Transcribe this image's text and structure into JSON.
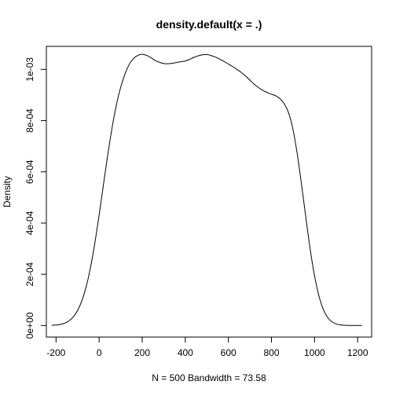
{
  "chart_data": {
    "type": "line",
    "title": "density.default(x = .)",
    "xlabel": "N = 500   Bandwidth = 73.58",
    "ylabel": "Density",
    "xlim": [
      -245,
      1265
    ],
    "ylim": [
      -4.5e-05,
      0.00109
    ],
    "x_ticks": [
      -200,
      0,
      200,
      400,
      600,
      800,
      1000,
      1200
    ],
    "x_tick_labels": [
      "-200",
      "0",
      "200",
      "400",
      "600",
      "800",
      "1000",
      "1200"
    ],
    "y_ticks": [
      0,
      0.0002,
      0.0004,
      0.0006,
      0.0008,
      0.001
    ],
    "y_tick_labels": [
      "0e+00",
      "2e-04",
      "4e-04",
      "6e-04",
      "8e-04",
      "1e-03"
    ],
    "grid": false,
    "series": [
      {
        "x": [
          -220,
          -200,
          -180,
          -160,
          -140,
          -120,
          -100,
          -80,
          -60,
          -40,
          -20,
          0,
          20,
          40,
          60,
          80,
          100,
          120,
          140,
          160,
          180,
          200,
          220,
          240,
          260,
          280,
          300,
          320,
          340,
          360,
          380,
          400,
          420,
          440,
          460,
          480,
          500,
          520,
          540,
          560,
          580,
          600,
          620,
          640,
          660,
          680,
          700,
          720,
          740,
          760,
          780,
          800,
          820,
          840,
          860,
          880,
          900,
          920,
          940,
          960,
          980,
          1000,
          1020,
          1040,
          1060,
          1080,
          1100,
          1120,
          1140,
          1160,
          1180,
          1200,
          1220
        ],
        "y": [
          8e-07,
          2.1e-06,
          4.4e-06,
          9.2e-06,
          1.83e-05,
          3.37e-05,
          5.9e-05,
          9.7e-05,
          0.000152,
          0.000227,
          0.000322,
          0.000432,
          0.00055,
          0.000666,
          0.000772,
          0.000861,
          0.00093,
          0.000982,
          0.00102,
          0.001043,
          0.001055,
          0.001059,
          0.001055,
          0.001046,
          0.001035,
          0.001028,
          0.001023,
          0.001022,
          0.001024,
          0.001027,
          0.00103,
          0.001033,
          0.001039,
          0.001047,
          0.001053,
          0.001057,
          0.001058,
          0.001054,
          0.001048,
          0.00104,
          0.001031,
          0.001021,
          0.001011,
          0.001,
          0.000988,
          0.000974,
          0.000958,
          0.000942,
          0.000929,
          0.000918,
          0.00091,
          0.000903,
          0.000897,
          0.000885,
          0.000865,
          0.000829,
          0.000765,
          0.000668,
          0.000548,
          0.000419,
          0.000296,
          0.000194,
          0.000117,
          6.42e-05,
          3.25e-05,
          1.51e-05,
          6.5e-06,
          2.6e-06,
          1e-06,
          4e-07,
          2e-07,
          1e-07,
          1e-07
        ]
      }
    ]
  }
}
